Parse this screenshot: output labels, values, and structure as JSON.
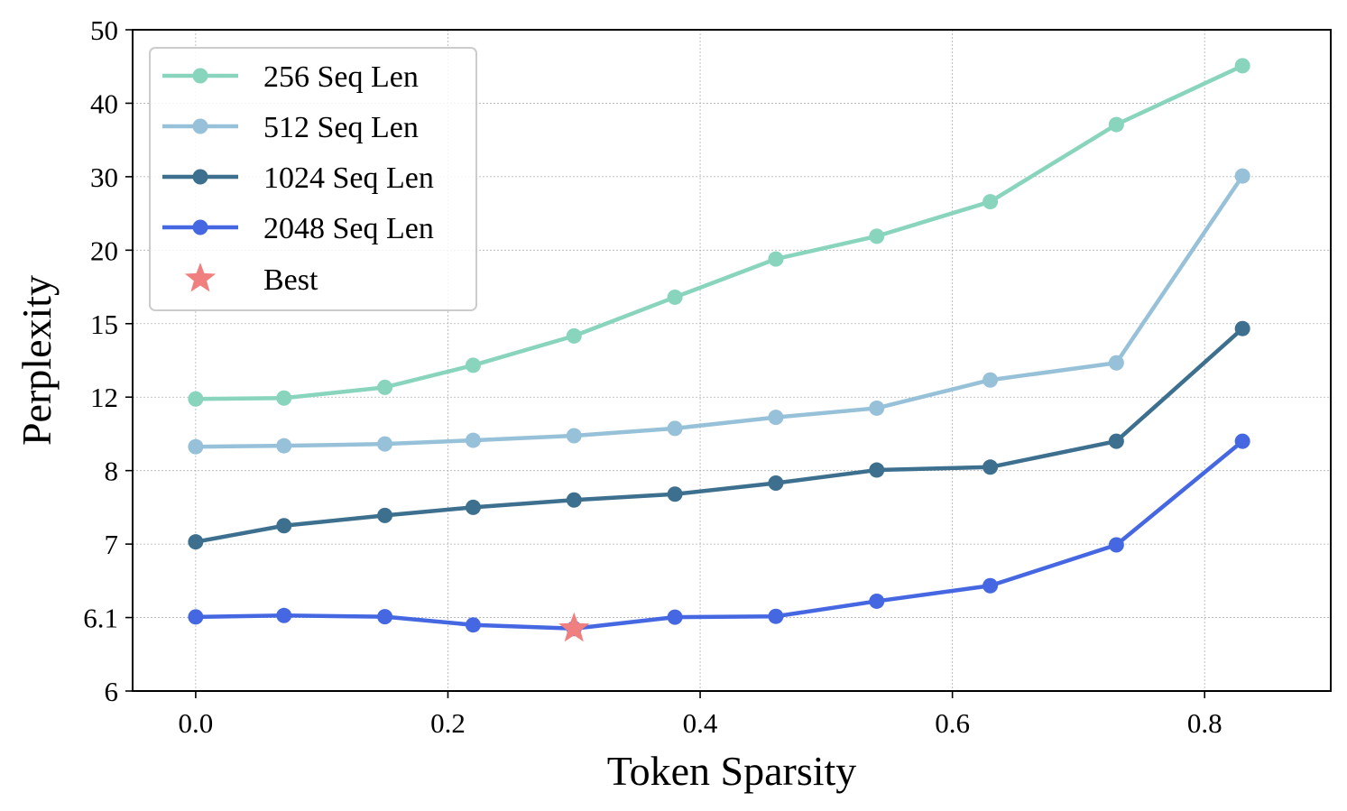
{
  "chart_data": {
    "type": "line",
    "title": "",
    "xlabel": "Token Sparsity",
    "ylabel": "Perplexity",
    "xlim": [
      -0.05,
      0.9
    ],
    "x_ticks": [
      0.0,
      0.2,
      0.4,
      0.6,
      0.8
    ],
    "x_tick_labels": [
      "0.0",
      "0.2",
      "0.4",
      "0.6",
      "0.8"
    ],
    "y_scale": "piecewise-categorical",
    "y_ticks": [
      6,
      6.1,
      7,
      8,
      12,
      15,
      20,
      30,
      40,
      50
    ],
    "y_tick_labels": [
      "6",
      "6.1",
      "7",
      "8",
      "12",
      "15",
      "20",
      "30",
      "40",
      "50"
    ],
    "grid": true,
    "legend_position": "top-left",
    "x": [
      0.0,
      0.07,
      0.15,
      0.22,
      0.3,
      0.38,
      0.46,
      0.54,
      0.63,
      0.73,
      0.83
    ],
    "series": [
      {
        "name": "256 Seq Len",
        "color": "#88d4bc",
        "values": [
          11.9,
          11.95,
          12.4,
          13.3,
          14.5,
          16.8,
          19.4,
          21.9,
          26.6,
          37.1,
          45.1
        ]
      },
      {
        "name": "512 Seq Len",
        "color": "#97c1d9",
        "values": [
          9.3,
          9.35,
          9.45,
          9.65,
          9.9,
          10.3,
          10.9,
          11.4,
          12.7,
          13.4,
          30.1
        ]
      },
      {
        "name": "1024 Seq Len",
        "color": "#3d6f8e",
        "values": [
          7.03,
          7.25,
          7.39,
          7.5,
          7.6,
          7.68,
          7.83,
          8.03,
          8.19,
          9.6,
          14.8
        ]
      },
      {
        "name": "2048 Seq Len",
        "color": "#4567e1",
        "values": [
          6.108,
          6.125,
          6.11,
          6.09,
          6.085,
          6.105,
          6.115,
          6.3,
          6.49,
          6.99,
          9.6
        ]
      }
    ],
    "best_marker": {
      "name": "Best",
      "color": "#f08080",
      "x": 0.3,
      "y": 6.085,
      "series": "2048 Seq Len"
    }
  }
}
